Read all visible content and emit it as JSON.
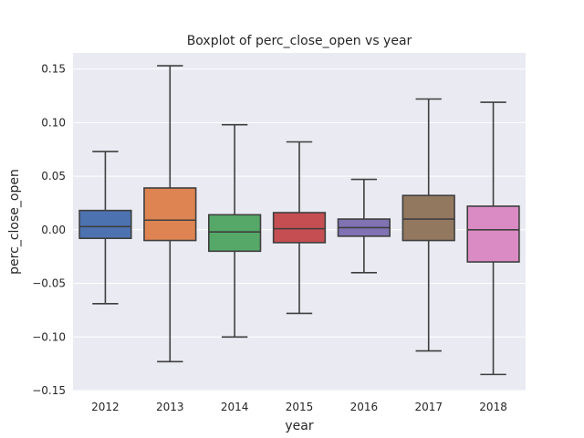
{
  "chart_data": {
    "type": "boxplot",
    "title": "Boxplot of perc_close_open vs year",
    "xlabel": "year",
    "ylabel": "perc_close_open",
    "ylim": [
      -0.15,
      0.165
    ],
    "yticks": [
      -0.15,
      -0.1,
      -0.05,
      0.0,
      0.05,
      0.1,
      0.15
    ],
    "ytick_labels": [
      "−0.15",
      "−0.10",
      "−0.05",
      "0.00",
      "0.05",
      "0.10",
      "0.15"
    ],
    "grid": true,
    "categories": [
      "2012",
      "2013",
      "2014",
      "2015",
      "2016",
      "2017",
      "2018"
    ],
    "boxes": [
      {
        "label": "2012",
        "whisker_low": -0.069,
        "q1": -0.008,
        "median": 0.003,
        "q3": 0.018,
        "whisker_high": 0.073,
        "color": "#4c72b0"
      },
      {
        "label": "2013",
        "whisker_low": -0.123,
        "q1": -0.01,
        "median": 0.009,
        "q3": 0.039,
        "whisker_high": 0.153,
        "color": "#dd8452"
      },
      {
        "label": "2014",
        "whisker_low": -0.1,
        "q1": -0.02,
        "median": -0.002,
        "q3": 0.014,
        "whisker_high": 0.098,
        "color": "#55a868"
      },
      {
        "label": "2015",
        "whisker_low": -0.078,
        "q1": -0.012,
        "median": 0.001,
        "q3": 0.016,
        "whisker_high": 0.082,
        "color": "#c44e52"
      },
      {
        "label": "2016",
        "whisker_low": -0.04,
        "q1": -0.006,
        "median": 0.002,
        "q3": 0.01,
        "whisker_high": 0.047,
        "color": "#8172b3"
      },
      {
        "label": "2017",
        "whisker_low": -0.113,
        "q1": -0.01,
        "median": 0.01,
        "q3": 0.032,
        "whisker_high": 0.122,
        "color": "#937860"
      },
      {
        "label": "2018",
        "whisker_low": -0.135,
        "q1": -0.03,
        "median": 0.0,
        "q3": 0.022,
        "whisker_high": 0.119,
        "color": "#da8bc3"
      }
    ],
    "colors": {
      "plot_background": "#eaeaf2",
      "grid": "#ffffff",
      "line": "#3f3f3f"
    }
  }
}
